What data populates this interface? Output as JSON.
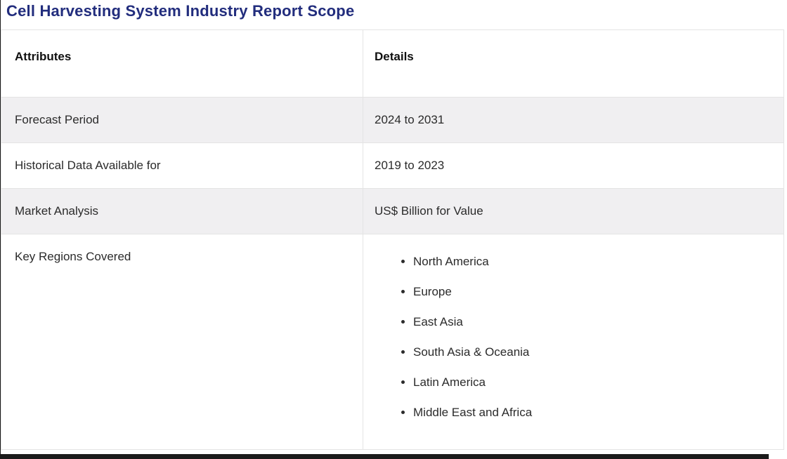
{
  "page": {
    "title": "Cell Harvesting System Industry Report Scope"
  },
  "table": {
    "headers": {
      "attribute": "Attributes",
      "detail": "Details"
    },
    "rows": [
      {
        "attribute": "Forecast Period",
        "detail": "2024 to 2031"
      },
      {
        "attribute": "Historical Data Available for",
        "detail": "2019 to 2023"
      },
      {
        "attribute": "Market Analysis",
        "detail": "US$ Billion for Value"
      },
      {
        "attribute": "Key Regions Covered"
      }
    ],
    "key_regions": [
      "North America",
      "Europe",
      "East Asia",
      "South Asia & Oceania",
      "Latin America",
      "Middle East and Africa"
    ]
  },
  "colors": {
    "title": "#222d7d",
    "row_alt_bg": "#f0eff1",
    "border": "#e4e4e4",
    "bottom_bar": "#1b1b1b"
  }
}
